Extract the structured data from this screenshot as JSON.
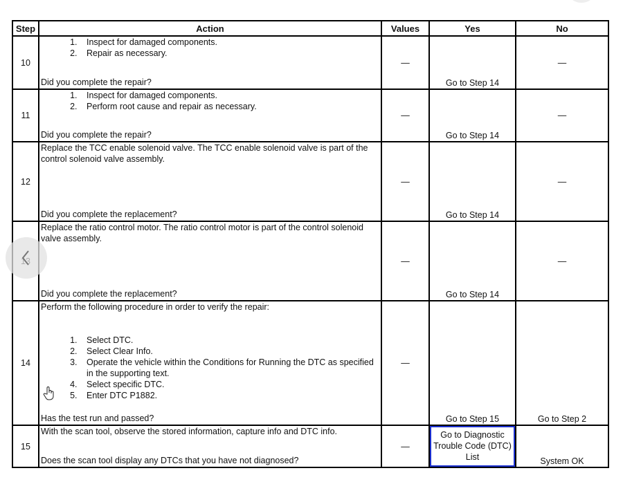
{
  "headers": {
    "step": "Step",
    "action": "Action",
    "values": "Values",
    "yes": "Yes",
    "no": "No"
  },
  "rows": [
    {
      "step": "10",
      "intro": "",
      "items": [
        "Inspect for damaged components.",
        "Repair as necessary."
      ],
      "question": "Did you complete the repair?",
      "values": "—",
      "yes": "Go to Step 14",
      "no": "—"
    },
    {
      "step": "11",
      "intro": "",
      "items": [
        "Inspect for damaged components.",
        "Perform root cause and repair as necessary."
      ],
      "question": "Did you complete the repair?",
      "values": "—",
      "yes": "Go to Step 14",
      "no": "—"
    },
    {
      "step": "12",
      "intro": "Replace the TCC enable solenoid valve. The TCC enable solenoid valve is part of the control solenoid valve assembly.",
      "items": [],
      "question": "Did you complete the replacement?",
      "values": "—",
      "yes": "Go to Step 14",
      "no": "—"
    },
    {
      "step": "13",
      "intro": "Replace the ratio control motor. The ratio control motor is part of the control solenoid valve assembly.",
      "items": [],
      "question": "Did you complete the replacement?",
      "values": "—",
      "yes": "Go to Step 14",
      "no": "—"
    },
    {
      "step": "14",
      "intro": "Perform the following procedure in order to verify the repair:",
      "items": [
        "Select DTC.",
        "Select Clear Info.",
        "Operate the vehicle within the Conditions for Running the DTC as specified in the supporting text.",
        "Select specific DTC.",
        "Enter DTC P1882."
      ],
      "question": "Has the test run and passed?",
      "values": "—",
      "yes": "Go to Step 15",
      "no": "Go to Step 2"
    },
    {
      "step": "15",
      "intro": "With the scan tool, observe the stored information, capture info and DTC info.",
      "items": [],
      "question": "Does the scan tool display any DTCs that you have not diagnosed?",
      "values": "—",
      "yes": "Go to Diagnostic Trouble Code (DTC) List",
      "no": "System OK"
    }
  ],
  "icons": {
    "prev": "chevron-left-icon",
    "cursor": "hand-pointer-icon"
  },
  "colors": {
    "highlight": "#1a2fd0"
  }
}
